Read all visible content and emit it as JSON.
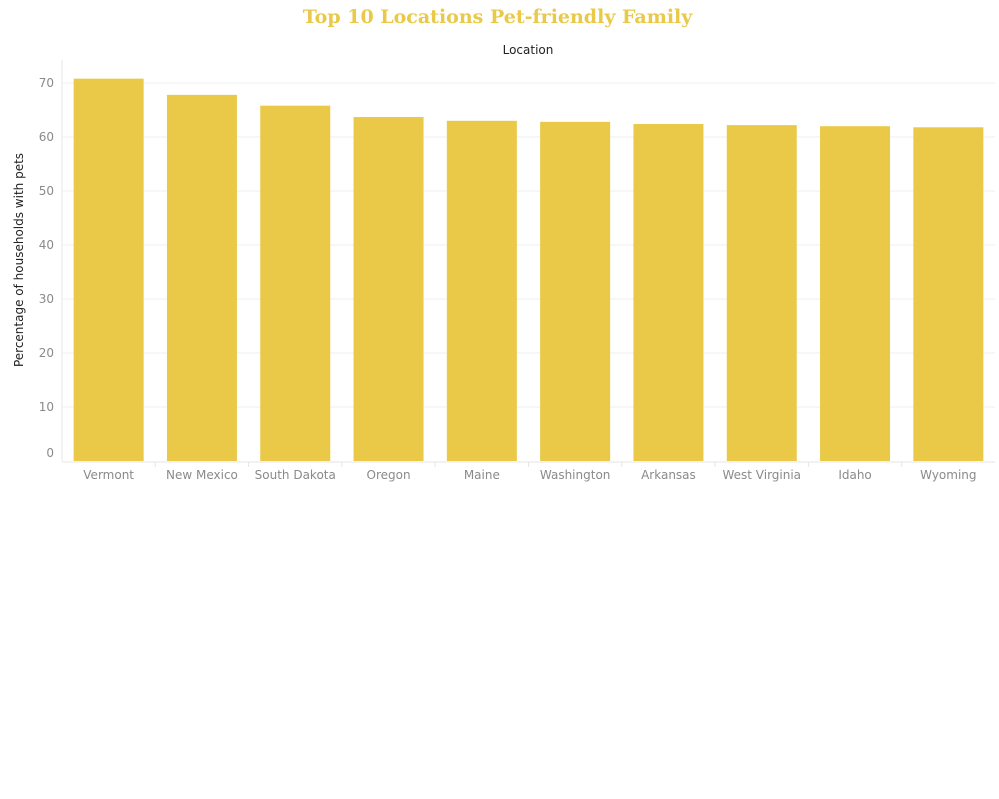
{
  "chart_data": {
    "type": "bar",
    "title": "Top 10 Locations Pet-friendly Family",
    "xlabel": "Location",
    "ylabel": "Percentage of households with pets",
    "categories": [
      "Vermont",
      "New Mexico",
      "South Dakota",
      "Oregon",
      "Maine",
      "Washington",
      "Arkansas",
      "West Virginia",
      "Idaho",
      "Wyoming"
    ],
    "values": [
      70.8,
      67.8,
      65.8,
      63.7,
      63.0,
      62.8,
      62.4,
      62.2,
      62.0,
      61.8
    ],
    "ylim": [
      0,
      75
    ],
    "yticks": [
      0,
      10,
      20,
      30,
      40,
      50,
      60,
      70
    ],
    "grid": true,
    "colors": {
      "bar": "#e9c947",
      "title": "#e9c947"
    }
  }
}
